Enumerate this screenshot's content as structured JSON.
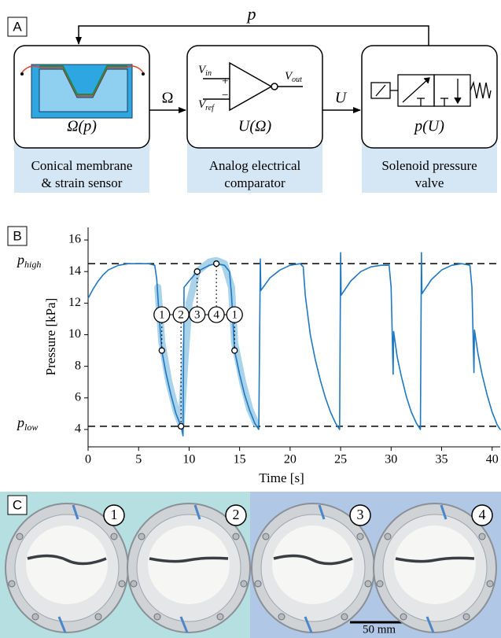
{
  "panel_a": {
    "label": "A",
    "feedback_label": "p",
    "signal_labels": [
      "Ω",
      "U"
    ],
    "blocks": [
      {
        "function": "Ω(p)",
        "caption": [
          "Conical membrane",
          "& strain sensor"
        ]
      },
      {
        "function": "U(Ω)",
        "caption": [
          "Analog electrical",
          "comparator"
        ]
      },
      {
        "function": "p(U)",
        "caption": [
          "Solenoid pressure",
          "valve"
        ]
      }
    ],
    "comparator": {
      "inputs": [
        {
          "symbol": "V",
          "subscript": "in",
          "sign": "+"
        },
        {
          "symbol": "V",
          "subscript": "ref",
          "sign": "−"
        }
      ],
      "output": {
        "symbol": "V",
        "subscript": "out"
      }
    }
  },
  "chart_data": {
    "type": "line",
    "panel_label": "B",
    "xlabel": "Time [s]",
    "ylabel": "Pressure [kPa]",
    "xlim": [
      0,
      40.8
    ],
    "ylim": [
      2.9,
      16.8
    ],
    "xticks": [
      0,
      5,
      10,
      15,
      20,
      25,
      30,
      35,
      40
    ],
    "yticks": [
      4,
      6,
      8,
      10,
      12,
      14,
      16
    ],
    "series": [
      {
        "color": "#a9d3ea",
        "x": [
          6.9,
          7.3,
          8,
          8.7,
          9.2,
          9.6,
          10,
          10.8,
          12,
          12.7,
          13.5,
          14.2,
          14.5,
          15.3,
          16,
          16.6
        ],
        "values": [
          13.0,
          9.5,
          7.0,
          5.2,
          4.3,
          8.5,
          12.0,
          14.0,
          14.6,
          14.7,
          14.5,
          13.0,
          9.5,
          7.0,
          5.3,
          4.4
        ]
      },
      {
        "color": "#1f78c1",
        "x": [
          0,
          0.5,
          1,
          1.5,
          2,
          3,
          4,
          5,
          6,
          6.6,
          6.8,
          7.0,
          7.3,
          7.7,
          8.2,
          8.7,
          9.2,
          9.4,
          9.5,
          10,
          10.8,
          12,
          12.7,
          13.5,
          14.0,
          14.2,
          14.5,
          15,
          15.5,
          16,
          16.5,
          16.9,
          17.05,
          17.1,
          18,
          19,
          20,
          21,
          21.3,
          21.5,
          22,
          22.5,
          23,
          23.5,
          24,
          24.5,
          24.9,
          25.0,
          25.05,
          26,
          27,
          28,
          29,
          29.8,
          30.0,
          30.2,
          30.25,
          30.6,
          31,
          31.5,
          32,
          32.5,
          32.9,
          33.0,
          33.05,
          34,
          35,
          36,
          37,
          37.8,
          38.0,
          38.2,
          38.25,
          38.6,
          39,
          39.5,
          40,
          40.5,
          40.8
        ],
        "values": [
          12.3,
          12.9,
          13.4,
          13.8,
          14.1,
          14.4,
          14.5,
          14.5,
          14.5,
          14.4,
          13.5,
          11.5,
          9.0,
          7.6,
          6.2,
          5.0,
          4.2,
          3.6,
          13.0,
          13.4,
          14.0,
          14.4,
          14.5,
          14.4,
          14.0,
          12.5,
          9.0,
          7.5,
          6.2,
          5.2,
          4.4,
          4.0,
          14.8,
          12.8,
          13.6,
          14.1,
          14.4,
          14.5,
          14.3,
          12.5,
          10.0,
          8.4,
          7.1,
          6.0,
          5.1,
          4.4,
          4.0,
          15.2,
          12.5,
          13.4,
          14.0,
          14.3,
          14.4,
          14.4,
          13.0,
          7.5,
          10.2,
          8.6,
          7.4,
          6.1,
          5.1,
          4.4,
          4.0,
          15.2,
          12.6,
          13.5,
          14.1,
          14.4,
          14.5,
          14.4,
          13.0,
          7.6,
          10.3,
          8.8,
          7.5,
          6.2,
          5.1,
          4.3,
          4.0
        ]
      }
    ],
    "reference_lines": [
      {
        "value": 14.5,
        "label": "p",
        "subscript": "high"
      },
      {
        "value": 4.2,
        "label": "p",
        "subscript": "low"
      }
    ],
    "annotations": [
      {
        "label": "1",
        "x": 7.3,
        "y": 9.0
      },
      {
        "label": "2",
        "x": 9.2,
        "y": 4.2
      },
      {
        "label": "3",
        "x": 10.8,
        "y": 14.0
      },
      {
        "label": "4",
        "x": 12.7,
        "y": 14.5
      },
      {
        "label": "1",
        "x": 14.5,
        "y": 9.0
      }
    ]
  },
  "panel_c": {
    "label": "C",
    "photos": [
      "1",
      "2",
      "3",
      "4"
    ],
    "scale_bar": "50 mm"
  }
}
